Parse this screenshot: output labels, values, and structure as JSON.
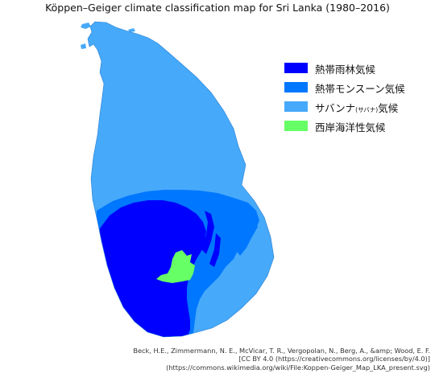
{
  "map": {
    "title": "Köppen–Geiger climate classification map for Sri Lanka (1980–2016)",
    "legend": [
      {
        "label": "熱帯雨林気候",
        "label_small": "",
        "label_suffix": "",
        "color": "#0000fe"
      },
      {
        "label": "熱帯モンスーン気候",
        "label_small": "",
        "label_suffix": "",
        "color": "#0077ff"
      },
      {
        "label": "サバンナ",
        "label_small": "(サバナ)",
        "label_suffix": "気候",
        "color": "#46a9fa"
      },
      {
        "label": "西岸海洋性気候",
        "label_small": "",
        "label_suffix": "",
        "color": "#66ff66"
      }
    ],
    "attribution": [
      "Beck, H.E., Zimmermann, N. E., McVicar, T. R., Vergopolan, N., Berg, A., &amp; Wood, E. F.",
      "[CC BY 4.0 (https://creativecommons.org/licenses/by/4.0)]",
      "(https://commons.wikimedia.org/wiki/File:Koppen-Geiger_Map_LKA_present.svg)"
    ]
  }
}
